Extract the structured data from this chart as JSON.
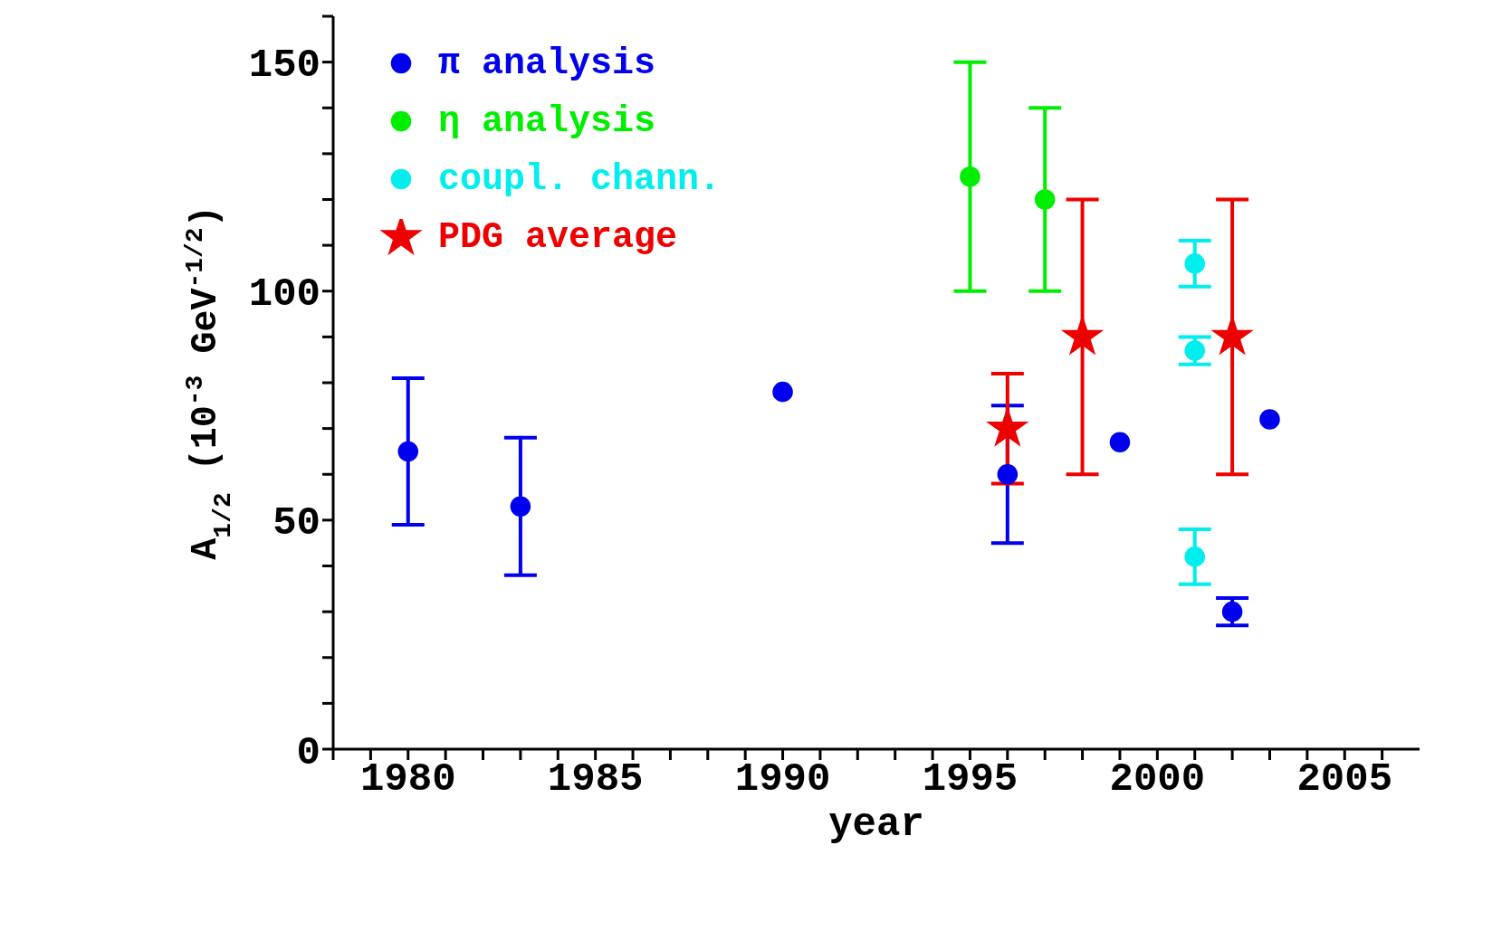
{
  "chart_data": {
    "type": "scatter",
    "xlabel": "year",
    "ylabel": "A$_{1/2}$ (10$^{-3}$ GeV$^{-1/2}$)",
    "xlim": [
      1978,
      2007
    ],
    "xticks": [
      {
        "value": 1978,
        "label": null
      },
      {
        "value": 1979,
        "label": null
      },
      1980,
      {
        "value": 1981,
        "label": null
      },
      {
        "value": 1982,
        "label": null
      },
      {
        "value": 1983,
        "label": null
      },
      {
        "value": 1984,
        "label": null
      },
      1985,
      {
        "value": 1986,
        "label": null
      },
      {
        "value": 1987,
        "label": null
      },
      {
        "value": 1988,
        "label": null
      },
      {
        "value": 1989,
        "label": null
      },
      1990,
      {
        "value": 1991,
        "label": null
      },
      {
        "value": 1992,
        "label": null
      },
      {
        "value": 1993,
        "label": null
      },
      {
        "value": 1994,
        "label": null
      },
      1995,
      {
        "value": 1996,
        "label": null
      },
      {
        "value": 1997,
        "label": null
      },
      {
        "value": 1998,
        "label": null
      },
      {
        "value": 1999,
        "label": null
      },
      2000,
      {
        "value": 2001,
        "label": null
      },
      {
        "value": 2002,
        "label": null
      },
      {
        "value": 2003,
        "label": null
      },
      {
        "value": 2004,
        "label": null
      },
      2005,
      {
        "value": 2006,
        "label": null
      }
    ],
    "ylim": [
      0,
      160
    ],
    "yticks": [
      0,
      {
        "value": 10,
        "label": null
      },
      {
        "value": 20,
        "label": null
      },
      {
        "value": 30,
        "label": null
      },
      {
        "value": 40,
        "label": null
      },
      50,
      {
        "value": 60,
        "label": null
      },
      {
        "value": 70,
        "label": null
      },
      {
        "value": 80,
        "label": null
      },
      {
        "value": 90,
        "label": null
      },
      100,
      {
        "value": 110,
        "label": null
      },
      {
        "value": 120,
        "label": null
      },
      {
        "value": 130,
        "label": null
      },
      {
        "value": 140,
        "label": null
      },
      150,
      {
        "value": 160,
        "label": null
      }
    ],
    "grid": false,
    "legend": "top left",
    "series": [
      {
        "name": "π analysis",
        "color": "#0000ee",
        "marker": "circle",
        "x": [
          1980,
          1983,
          1990,
          1996,
          1999,
          2002,
          2003
        ],
        "values": [
          65,
          53,
          78,
          60,
          67,
          30,
          72
        ],
        "errors": [
          [
            49,
            81
          ],
          [
            38,
            68
          ],
          null,
          [
            45,
            75
          ],
          null,
          [
            27,
            33
          ],
          null
        ]
      },
      {
        "name": "η analysis",
        "color": "#00ee00",
        "marker": "circle",
        "x": [
          1995,
          1997
        ],
        "values": [
          125,
          120
        ],
        "errors": [
          [
            100,
            150
          ],
          [
            100,
            140
          ]
        ]
      },
      {
        "name": "coupl. chann.",
        "color": "#00eeee",
        "marker": "circle",
        "x": [
          2001,
          2001,
          2001
        ],
        "values": [
          106,
          87,
          42
        ],
        "errors": [
          [
            101,
            111
          ],
          [
            84,
            90
          ],
          [
            36,
            48
          ]
        ]
      },
      {
        "name": "PDG average",
        "color": "#ee0000",
        "marker": "star",
        "x": [
          1996,
          1998,
          2002
        ],
        "values": [
          70,
          90,
          90
        ],
        "errors": [
          [
            58,
            82
          ],
          [
            60,
            120
          ],
          [
            60,
            120
          ]
        ]
      }
    ]
  }
}
